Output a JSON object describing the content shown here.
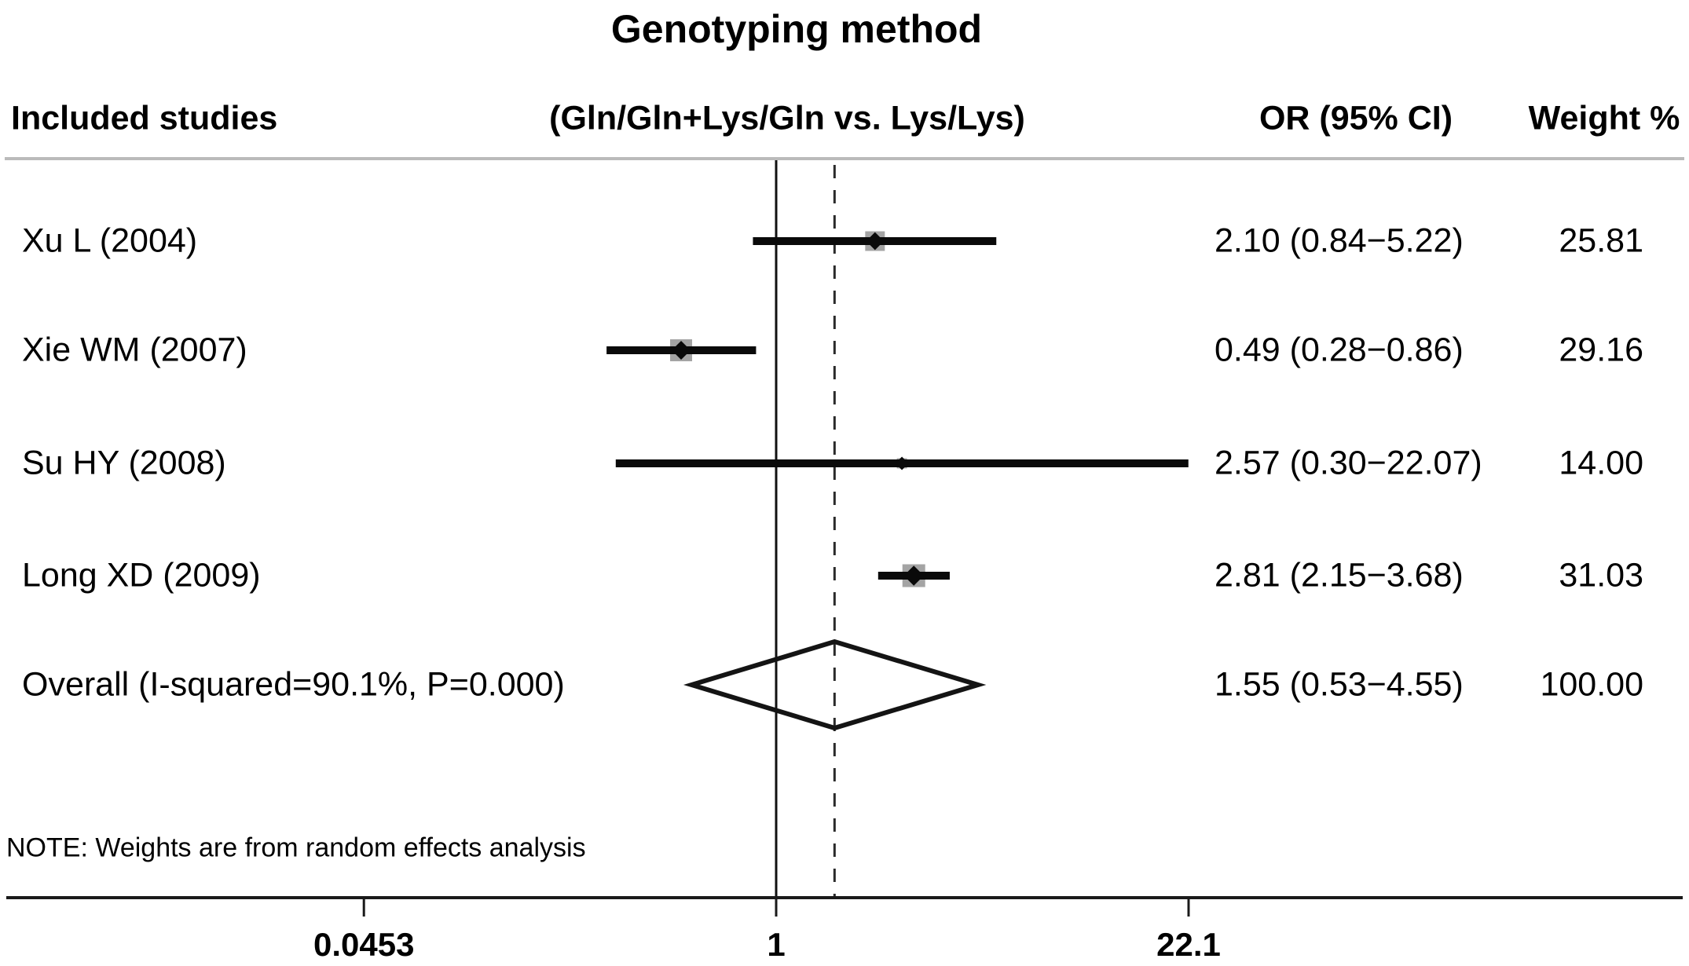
{
  "title": "Genotyping method",
  "columns": {
    "included_studies": "Included studies",
    "comparison": "(Gln/Gln+Lys/Gln vs. Lys/Lys)",
    "or_ci": "OR (95% CI)",
    "weight_pct": "Weight %"
  },
  "note": "NOTE: Weights are from random effects analysis",
  "chart_data": {
    "type": "forest",
    "title": "Genotyping method",
    "subtitle": "(Gln/Gln+Lys/Gln vs. Lys/Lys)",
    "x_scale": "log",
    "xlim": [
      0.0453,
      22.1
    ],
    "grid": false,
    "legend_position": "none",
    "axis_ticks": [
      {
        "label": "0.0453",
        "value": 0.0453
      },
      {
        "label": "1",
        "value": 1
      },
      {
        "label": "22.1",
        "value": 22.1
      }
    ],
    "null_line_value": 1,
    "overall_dashed_line_value": 1.55,
    "studies": [
      {
        "label": "Xu L (2004)",
        "or": 2.1,
        "ci_low": 0.84,
        "ci_high": 5.22,
        "weight": 25.81,
        "or_text": "2.10 (0.84−5.22)",
        "weight_text": "25.81"
      },
      {
        "label": "Xie WM (2007)",
        "or": 0.49,
        "ci_low": 0.28,
        "ci_high": 0.86,
        "weight": 29.16,
        "or_text": "0.49 (0.28−0.86)",
        "weight_text": "29.16"
      },
      {
        "label": "Su HY (2008)",
        "or": 2.57,
        "ci_low": 0.3,
        "ci_high": 22.07,
        "weight": 14.0,
        "or_text": "2.57 (0.30−22.07)",
        "weight_text": "14.00"
      },
      {
        "label": "Long XD (2009)",
        "or": 2.81,
        "ci_low": 2.15,
        "ci_high": 3.68,
        "weight": 31.03,
        "or_text": "2.81 (2.15−3.68)",
        "weight_text": "31.03"
      }
    ],
    "overall": {
      "label": "Overall (I-squared=90.1%, P=0.000)",
      "or": 1.55,
      "ci_low": 0.53,
      "ci_high": 4.55,
      "weight": 100.0,
      "or_text": "1.55 (0.53−4.55)",
      "weight_text": "100.00"
    }
  },
  "colors": {
    "background": "#ffffff",
    "text": "#000000",
    "ci_line": "#0a0a0a",
    "marker_square": "#a4a4a4",
    "point": "#0a0a0a",
    "diamond_stroke": "#141414",
    "dashed_line": "#2a2a2a",
    "null_line": "#111111",
    "axis": "#1a1a1a",
    "divider": "#bbbbbb"
  }
}
